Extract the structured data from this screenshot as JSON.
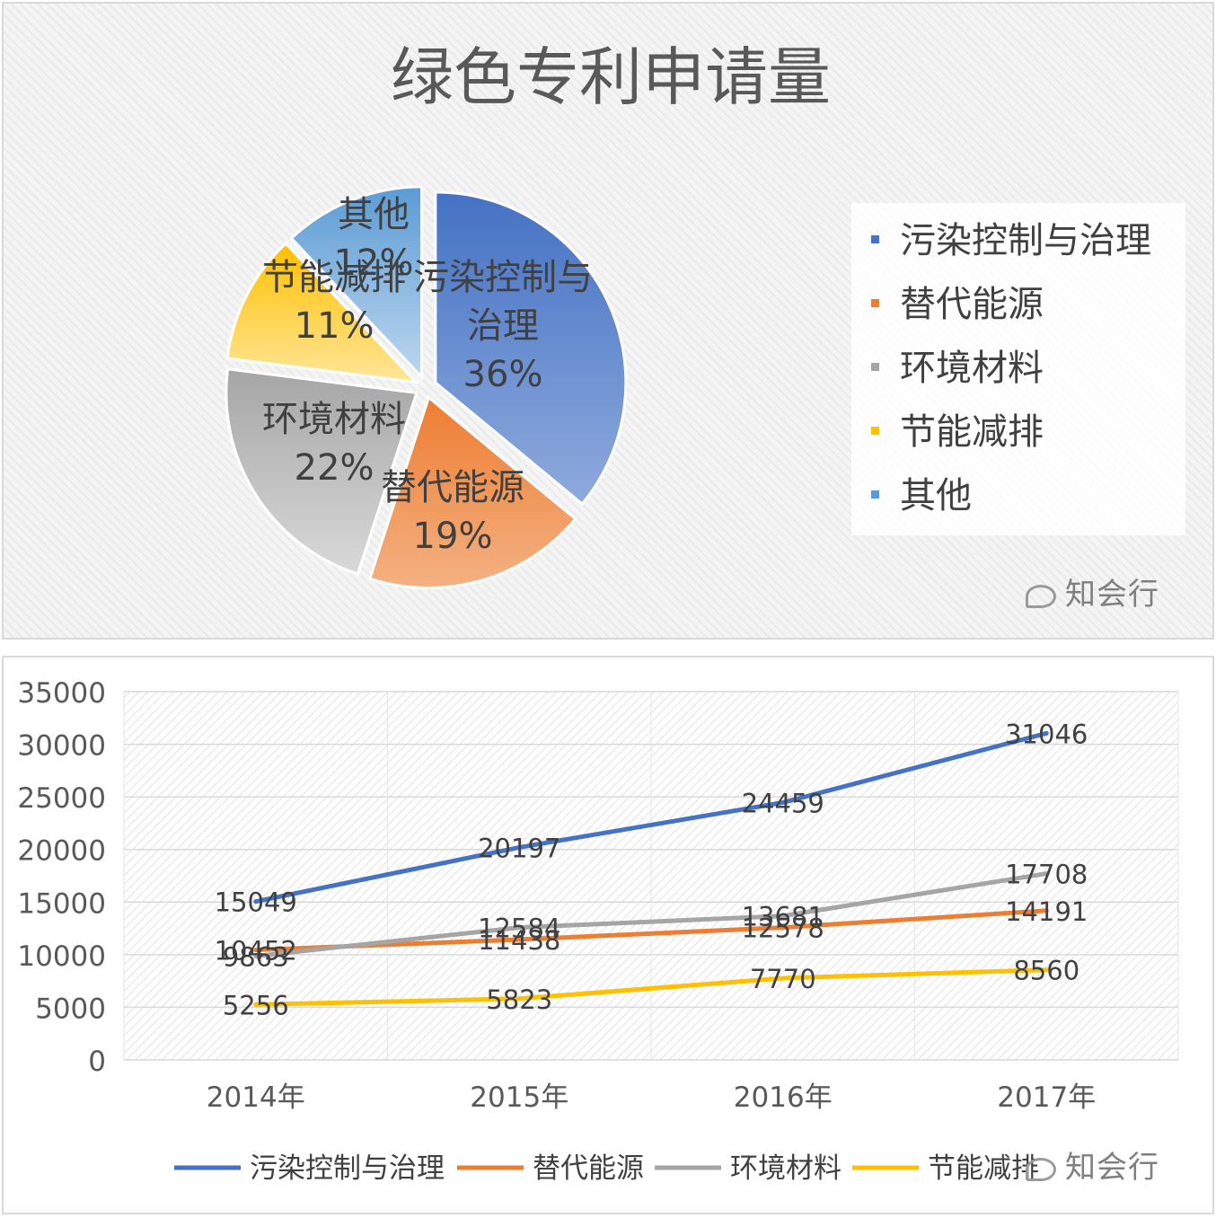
{
  "watermark": "知会行",
  "chart_data": [
    {
      "type": "pie",
      "title": "绿色专利申请量",
      "slices": [
        {
          "label": "污染控制与治理",
          "value": 36,
          "display": "36%",
          "color": "#4472c4",
          "color_light": "#8faadc"
        },
        {
          "label": "替代能源",
          "value": 19,
          "display": "19%",
          "color": "#ed7d31",
          "color_light": "#f4b183"
        },
        {
          "label": "环境材料",
          "value": 22,
          "display": "22%",
          "color": "#a5a5a5",
          "color_light": "#d9d9d9"
        },
        {
          "label": "节能减排",
          "value": 11,
          "display": "11%",
          "color": "#ffc000",
          "color_light": "#ffe699"
        },
        {
          "label": "其他",
          "value": 12,
          "display": "12%",
          "color": "#5b9bd5",
          "color_light": "#bdd7ee"
        }
      ],
      "legend": [
        "污染控制与治理",
        "替代能源",
        "环境材料",
        "节能减排",
        "其他"
      ],
      "legend_position": "right"
    },
    {
      "type": "line",
      "categories": [
        "2014年",
        "2015年",
        "2016年",
        "2017年"
      ],
      "series": [
        {
          "name": "污染控制与治理",
          "values": [
            15049,
            20197,
            24459,
            31046
          ],
          "color": "#4472c4"
        },
        {
          "name": "替代能源",
          "values": [
            10452,
            11438,
            12578,
            14191
          ],
          "color": "#ed7d31"
        },
        {
          "name": "环境材料",
          "values": [
            9863,
            12584,
            13681,
            17708
          ],
          "color": "#a5a5a5"
        },
        {
          "name": "节能减排",
          "values": [
            5256,
            5823,
            7770,
            8560
          ],
          "color": "#ffc000"
        }
      ],
      "ylim": [
        0,
        35000
      ],
      "yticks": [
        "0",
        "5000",
        "10000",
        "15000",
        "20000",
        "25000",
        "30000",
        "35000"
      ],
      "grid": true,
      "legend_position": "bottom"
    }
  ]
}
